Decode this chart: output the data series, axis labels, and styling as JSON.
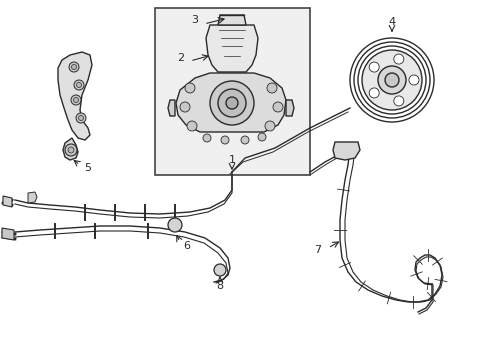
{
  "bg_color": "#ffffff",
  "line_color": "#2a2a2a",
  "box_bg": "#f2f2f2",
  "box_border": "#555555",
  "fig_width": 4.89,
  "fig_height": 3.6,
  "dpi": 100
}
